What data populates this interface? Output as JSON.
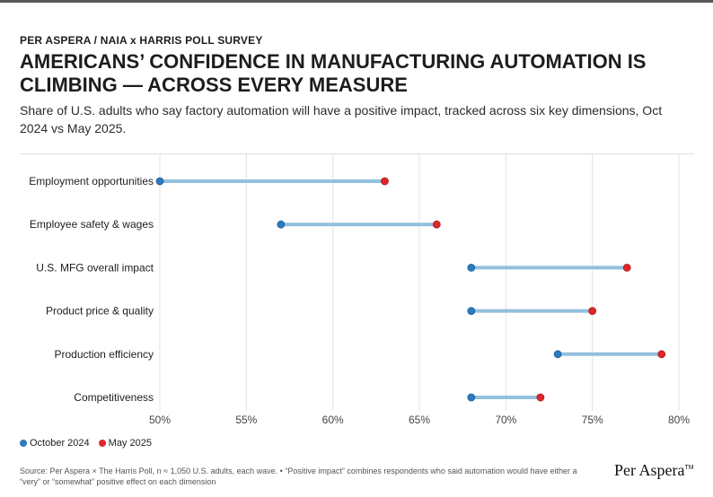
{
  "header": {
    "eyebrow": "PER ASPERA / NAIA x HARRIS POLL SURVEY",
    "title": "AMERICANS’ CONFIDENCE IN MANUFACTURING AUTOMATION IS CLIMBING — ACROSS EVERY MEASURE",
    "subtitle": "Share of U.S. adults who say factory automation will have a positive impact, tracked across six key dimensions, Oct 2024 vs May 2025."
  },
  "colors": {
    "oct": "#2b7bbf",
    "may": "#e0262b",
    "connector": "#93bfdf",
    "grid": "#e3e3e3"
  },
  "chart_data": {
    "type": "dumbbell",
    "categories": [
      "Employment opportunities",
      "Employee safety & wages",
      "U.S. MFG overall impact",
      "Product price & quality",
      "Production efficiency",
      "Competitiveness"
    ],
    "series": [
      {
        "name": "October 2024",
        "values": [
          50,
          57,
          68,
          68,
          73,
          68
        ]
      },
      {
        "name": "May 2025",
        "values": [
          63,
          66,
          77,
          75,
          79,
          72
        ]
      }
    ],
    "xlim": [
      50,
      80
    ],
    "xticks": [
      50,
      55,
      60,
      65,
      70,
      75,
      80
    ],
    "xtick_labels": [
      "50%",
      "55%",
      "60%",
      "65%",
      "70%",
      "75%",
      "80%"
    ],
    "grid": "vertical",
    "legend": "bottom-left"
  },
  "legend": {
    "oct_label": "October 2024",
    "may_label": "May 2025"
  },
  "footer": {
    "source": "Source: Per Aspera × The Harris Poll, n ≈ 1,050 U.S. adults, each wave. • “Positive impact” combines respondents who said automation would have either a “very” or “somewhat” positive effect on each dimension",
    "brand": "Per Aspera",
    "brand_tm": "TM"
  }
}
